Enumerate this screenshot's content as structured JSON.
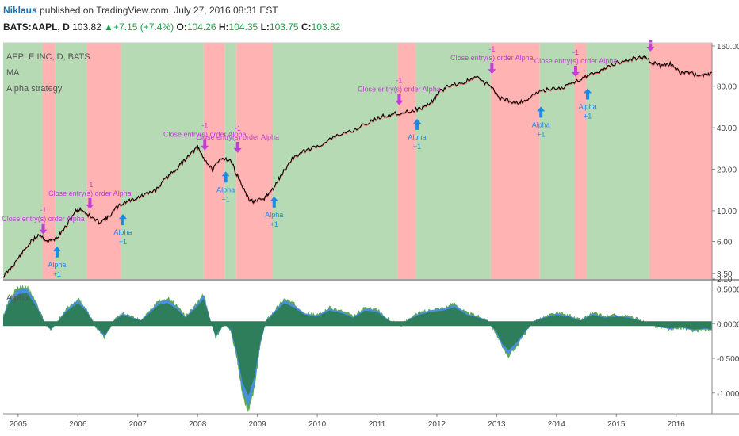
{
  "header": {
    "author": "Niklaus",
    "published": "published on TradingView.com, July 27, 2016 08:31 EST",
    "symbol": "BATS:AAPL, D",
    "last": "103.82",
    "change": "+7.15 (+7.4%)",
    "o_label": "O:",
    "o_val": "104.26",
    "h_label": "H:",
    "h_val": "104.35",
    "l_label": "L:",
    "l_val": "103.75",
    "c_label": "C:",
    "c_val": "103.82"
  },
  "legend": {
    "line1": "APPLE INC, D, BATS",
    "line2": "MA",
    "line3": "Alpha strategy",
    "sub": "Alpha"
  },
  "colors": {
    "long_bg": "#b6dab4",
    "short_bg": "#ffb3b3",
    "price": "#000000",
    "ma": "#d44a4a",
    "signal_close": "#c13fd6",
    "signal_entry": "#1e88e5",
    "osc_green": "#2e7d5b",
    "osc_light": "#5aab4a",
    "osc_blue": "#4a8fe0",
    "axis_text": "#444444"
  },
  "chart_data": [
    {
      "type": "line",
      "title": "APPLE INC, D, BATS",
      "scale": "log",
      "x_range": [
        2004.75,
        2016.6
      ],
      "ylim": [
        3.2,
        165
      ],
      "y_ticks": [
        "160.00",
        "80.00",
        "40.00",
        "20.00",
        "10.00",
        "6.00",
        "3.50",
        "2.10"
      ],
      "y_tick_values": [
        160,
        80,
        40,
        20,
        10,
        6,
        3.5,
        2.1
      ],
      "x_ticks": [
        "2005",
        "2006",
        "2007",
        "2008",
        "2009",
        "2010",
        "2011",
        "2012",
        "2013",
        "2014",
        "2015",
        "2016"
      ],
      "x_tick_values": [
        2005,
        2006,
        2007,
        2008,
        2009,
        2010,
        2011,
        2012,
        2013,
        2014,
        2015,
        2016
      ],
      "series": [
        {
          "name": "APPLE INC",
          "x": [
            2004.75,
            2004.9,
            2005.05,
            2005.2,
            2005.35,
            2005.5,
            2005.65,
            2005.8,
            2005.95,
            2006.05,
            2006.2,
            2006.35,
            2006.5,
            2006.65,
            2006.8,
            2006.95,
            2007.1,
            2007.3,
            2007.5,
            2007.7,
            2007.85,
            2008.0,
            2008.1,
            2008.25,
            2008.4,
            2008.55,
            2008.7,
            2008.85,
            2008.95,
            2009.1,
            2009.25,
            2009.4,
            2009.6,
            2009.8,
            2010.0,
            2010.3,
            2010.6,
            2010.9,
            2011.1,
            2011.3,
            2011.55,
            2011.75,
            2011.9,
            2012.05,
            2012.2,
            2012.45,
            2012.65,
            2012.9,
            2013.05,
            2013.2,
            2013.35,
            2013.5,
            2013.7,
            2013.9,
            2014.1,
            2014.3,
            2014.5,
            2014.7,
            2014.9,
            2015.1,
            2015.3,
            2015.45,
            2015.6,
            2015.75,
            2015.9,
            2016.05,
            2016.2,
            2016.35,
            2016.5,
            2016.6
          ],
          "y": [
            3.3,
            3.9,
            4.8,
            5.8,
            6.7,
            5.9,
            6.3,
            7.6,
            9.8,
            10.2,
            9.0,
            8.2,
            8.8,
            10.5,
            11.5,
            12.1,
            12.8,
            14.0,
            17.5,
            21.0,
            25.0,
            28.5,
            24.0,
            19.5,
            24.0,
            23.0,
            16.5,
            12.0,
            11.5,
            12.0,
            14.0,
            18.0,
            24.0,
            27.0,
            29.0,
            34.0,
            38.0,
            44.0,
            48.0,
            50.0,
            52.0,
            55.0,
            60.0,
            72.0,
            80.0,
            84.0,
            92.0,
            79.0,
            65.0,
            62.0,
            60.0,
            63.0,
            72.0,
            76.0,
            77.0,
            85.0,
            94.0,
            100.0,
            112.0,
            120.0,
            126.0,
            128.0,
            118.0,
            110.0,
            115.0,
            100.0,
            99.0,
            96.0,
            95.0,
            99.0
          ]
        }
      ],
      "regions": [
        {
          "start": 2004.75,
          "end": 2005.4,
          "state": "long"
        },
        {
          "start": 2005.4,
          "end": 2005.62,
          "state": "short"
        },
        {
          "start": 2005.62,
          "end": 2006.15,
          "state": "long"
        },
        {
          "start": 2006.15,
          "end": 2006.72,
          "state": "short"
        },
        {
          "start": 2006.72,
          "end": 2008.1,
          "state": "long"
        },
        {
          "start": 2008.1,
          "end": 2008.45,
          "state": "short"
        },
        {
          "start": 2008.45,
          "end": 2008.65,
          "state": "long"
        },
        {
          "start": 2008.65,
          "end": 2009.25,
          "state": "short"
        },
        {
          "start": 2009.25,
          "end": 2011.35,
          "state": "long"
        },
        {
          "start": 2011.35,
          "end": 2011.65,
          "state": "short"
        },
        {
          "start": 2011.65,
          "end": 2012.9,
          "state": "long"
        },
        {
          "start": 2012.9,
          "end": 2013.72,
          "state": "short"
        },
        {
          "start": 2013.72,
          "end": 2014.3,
          "state": "long"
        },
        {
          "start": 2014.3,
          "end": 2014.5,
          "state": "short"
        },
        {
          "start": 2014.5,
          "end": 2015.55,
          "state": "long"
        },
        {
          "start": 2015.55,
          "end": 2016.6,
          "state": "short"
        }
      ],
      "annotations": [
        {
          "x": 2005.42,
          "y": 5.9,
          "kind": "close",
          "label": "Close entry(s) order Alpha",
          "qty": "-1"
        },
        {
          "x": 2005.65,
          "y": 6.3,
          "kind": "entry",
          "label": "Alpha",
          "qty": "+1"
        },
        {
          "x": 2006.2,
          "y": 9.0,
          "kind": "close",
          "label": "Close entry(s) order Alpha",
          "qty": "-1"
        },
        {
          "x": 2006.75,
          "y": 10.8,
          "kind": "entry",
          "label": "Alpha",
          "qty": "+1"
        },
        {
          "x": 2008.12,
          "y": 24.0,
          "kind": "close",
          "label": "Close entry(s) order Alpha",
          "qty": "-1"
        },
        {
          "x": 2008.47,
          "y": 22.0,
          "kind": "entry",
          "label": "Alpha",
          "qty": "+1"
        },
        {
          "x": 2008.67,
          "y": 23.0,
          "kind": "close",
          "label": "Close entry(s) order Alpha",
          "qty": "-1"
        },
        {
          "x": 2009.28,
          "y": 14.5,
          "kind": "entry",
          "label": "Alpha",
          "qty": "+1"
        },
        {
          "x": 2011.37,
          "y": 51.0,
          "kind": "close",
          "label": "Close entry(s) order Alpha",
          "qty": "-1"
        },
        {
          "x": 2011.67,
          "y": 53.0,
          "kind": "entry",
          "label": "Alpha",
          "qty": "+1"
        },
        {
          "x": 2012.92,
          "y": 86.0,
          "kind": "close",
          "label": "Close entry(s) order Alpha",
          "qty": "-1"
        },
        {
          "x": 2013.74,
          "y": 65.0,
          "kind": "entry",
          "label": "Alpha",
          "qty": "+1"
        },
        {
          "x": 2014.32,
          "y": 82.0,
          "kind": "close",
          "label": "Close entry(s) order Alpha",
          "qty": "-1"
        },
        {
          "x": 2014.52,
          "y": 88.0,
          "kind": "entry",
          "label": "Alpha",
          "qty": "+1"
        },
        {
          "x": 2015.57,
          "y": 125.0,
          "kind": "close",
          "label": "",
          "qty": ""
        }
      ]
    },
    {
      "type": "area",
      "title": "Alpha",
      "x_range": [
        2004.75,
        2016.6
      ],
      "ylim": [
        -1.3,
        0.62
      ],
      "y_ticks": [
        "0.5000",
        "0.0000",
        "-0.5000",
        "-1.0000"
      ],
      "y_tick_values": [
        0.5,
        0.0,
        -0.5,
        -1.0
      ],
      "series": [
        {
          "name": "Alpha",
          "x": [
            2004.75,
            2004.85,
            2005.0,
            2005.15,
            2005.3,
            2005.45,
            2005.55,
            2005.65,
            2005.8,
            2006.0,
            2006.15,
            2006.3,
            2006.45,
            2006.6,
            2006.75,
            2006.9,
            2007.05,
            2007.2,
            2007.35,
            2007.5,
            2007.65,
            2007.8,
            2008.0,
            2008.1,
            2008.2,
            2008.3,
            2008.45,
            2008.55,
            2008.65,
            2008.75,
            2008.85,
            2008.95,
            2009.05,
            2009.15,
            2009.3,
            2009.45,
            2009.6,
            2009.8,
            2010.0,
            2010.2,
            2010.4,
            2010.6,
            2010.8,
            2011.0,
            2011.2,
            2011.4,
            2011.55,
            2011.7,
            2011.9,
            2012.1,
            2012.3,
            2012.5,
            2012.7,
            2012.85,
            2013.0,
            2013.1,
            2013.2,
            2013.35,
            2013.5,
            2013.65,
            2013.8,
            2014.0,
            2014.2,
            2014.4,
            2014.6,
            2014.8,
            2015.0,
            2015.2,
            2015.4,
            2015.55,
            2015.7,
            2015.9,
            2016.1,
            2016.3,
            2016.5,
            2016.6
          ],
          "y": [
            0.1,
            0.35,
            0.5,
            0.52,
            0.3,
            0.0,
            -0.1,
            0.02,
            0.2,
            0.35,
            0.2,
            -0.05,
            -0.2,
            0.05,
            0.15,
            0.1,
            0.05,
            0.18,
            0.32,
            0.35,
            0.25,
            0.1,
            0.3,
            0.42,
            0.1,
            -0.2,
            0.0,
            -0.1,
            -0.45,
            -1.0,
            -1.22,
            -0.9,
            -0.3,
            0.05,
            0.2,
            0.35,
            0.28,
            0.15,
            0.12,
            0.22,
            0.18,
            0.1,
            0.22,
            0.2,
            0.05,
            -0.02,
            0.08,
            0.15,
            0.2,
            0.22,
            0.28,
            0.15,
            0.1,
            0.05,
            -0.15,
            -0.35,
            -0.45,
            -0.3,
            -0.1,
            0.05,
            0.1,
            0.15,
            0.12,
            0.05,
            0.15,
            0.1,
            0.12,
            0.1,
            0.05,
            0.0,
            -0.05,
            -0.08,
            -0.06,
            -0.1,
            -0.08,
            -0.1
          ]
        }
      ]
    }
  ]
}
